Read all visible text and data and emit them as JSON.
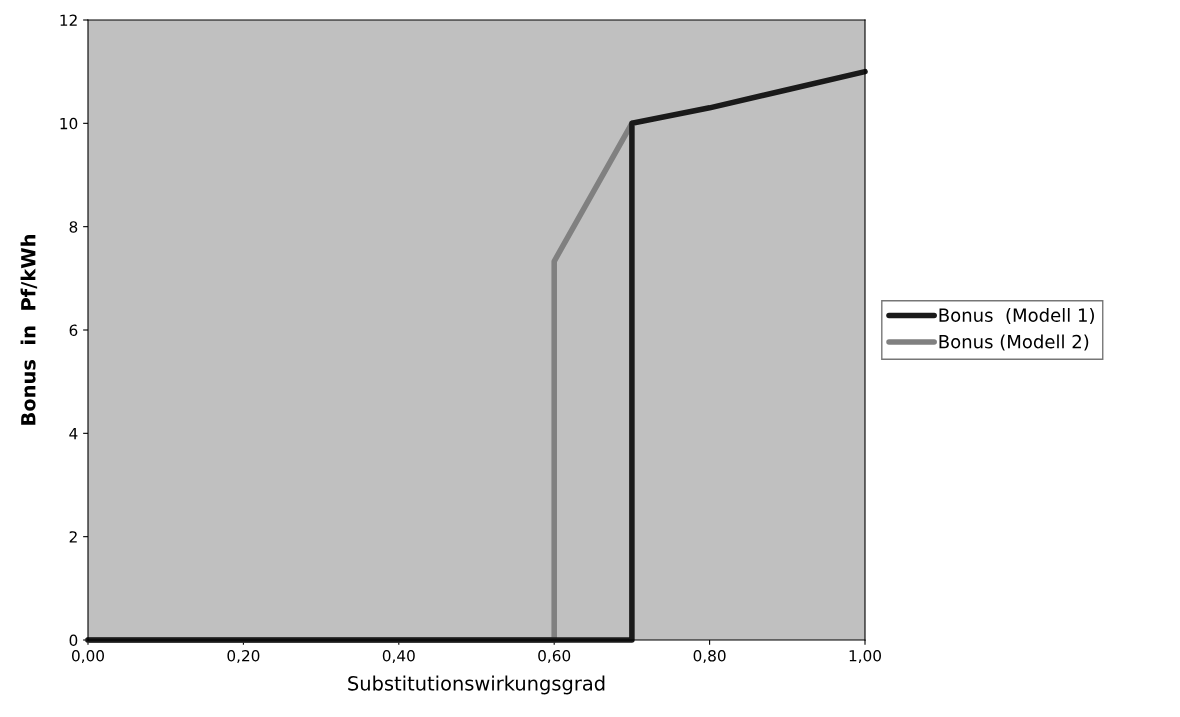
{
  "chart_data": {
    "type": "line",
    "xlabel": "Substitutionswirkungsgrad",
    "ylabel": "Bonus  in  Pf/kWh",
    "series": [
      {
        "name": "Bonus  (Modell 1)",
        "color": "#1a1a1a",
        "x": [
          0,
          0.1,
          0.2,
          0.3,
          0.4,
          0.5,
          0.6,
          0.7,
          0.7,
          0.8,
          0.9,
          1.0
        ],
        "values": [
          0,
          0,
          0,
          0,
          0,
          0,
          0,
          0,
          10,
          10.3,
          10.65,
          11
        ]
      },
      {
        "name": "Bonus (Modell 2)",
        "color": "#808080",
        "x": [
          0,
          0.1,
          0.2,
          0.3,
          0.4,
          0.5,
          0.6,
          0.6,
          0.7
        ],
        "values": [
          0,
          0,
          0,
          0,
          0,
          0,
          0,
          7.33,
          10
        ]
      }
    ],
    "xlim": [
      0,
      1
    ],
    "xticks": [
      {
        "value": 0,
        "label": "0,00"
      },
      {
        "value": 0.2,
        "label": "0,20"
      },
      {
        "value": 0.4,
        "label": "0,40"
      },
      {
        "value": 0.6,
        "label": "0,60"
      },
      {
        "value": 0.8,
        "label": "0,80"
      },
      {
        "value": 1.0,
        "label": "1,00"
      }
    ],
    "ylim": [
      0,
      12
    ],
    "yticks": [
      0,
      2,
      4,
      6,
      8,
      10,
      12
    ],
    "grid": false,
    "legend": "right",
    "marker": "none",
    "line_style": "solid"
  }
}
